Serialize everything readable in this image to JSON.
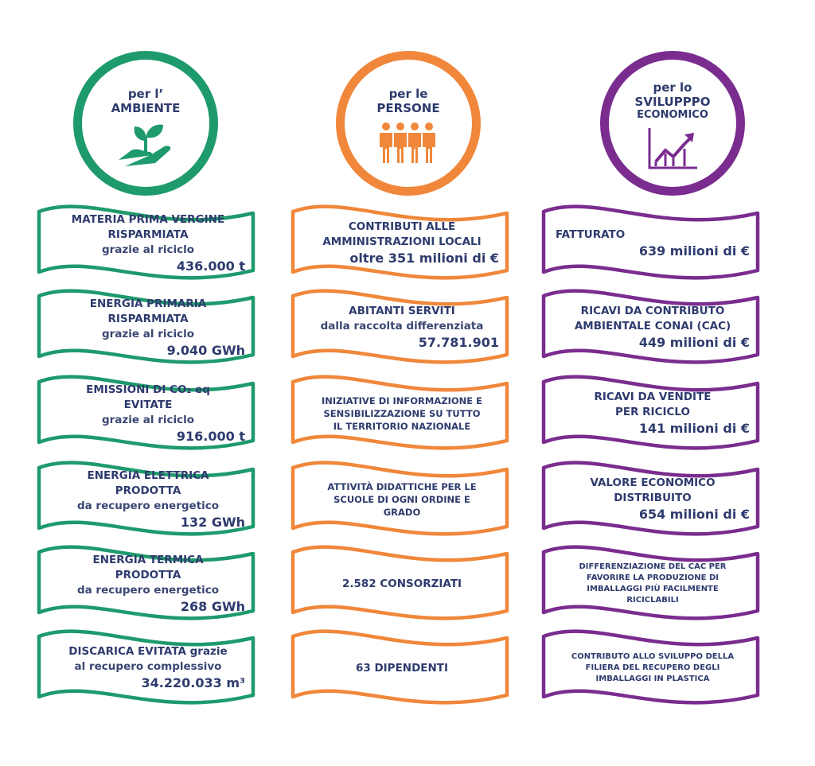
{
  "colors": {
    "ambiente": "#1e9a6c",
    "persone": "#f0873a",
    "sviluppo": "#7a2c8f",
    "text": "#2e3b6e"
  },
  "columns": [
    {
      "id": "ambiente",
      "icon": "plant-in-hand-icon",
      "heading": [
        "per l’",
        "AMBIENTE"
      ],
      "banners": [
        {
          "lines": [
            {
              "text": "MATERIA PRIMA VERGINE",
              "kind": "title"
            },
            {
              "text": "RISPARMIATA",
              "kind": "title"
            },
            {
              "text": "grazie al riciclo",
              "kind": "sub"
            },
            {
              "text": "436.000 t",
              "kind": "value"
            }
          ]
        },
        {
          "lines": [
            {
              "text": "ENERGIA PRIMARIA",
              "kind": "title"
            },
            {
              "text": "RISPARMIATA",
              "kind": "title"
            },
            {
              "text": "grazie al riciclo",
              "kind": "sub"
            },
            {
              "text": "9.040 GWh",
              "kind": "value"
            }
          ]
        },
        {
          "lines": [
            {
              "text": "EMISSIONI DI CO₂ eq",
              "kind": "title"
            },
            {
              "text": "EVITATE",
              "kind": "title"
            },
            {
              "text": "grazie al riciclo",
              "kind": "sub"
            },
            {
              "text": "916.000 t",
              "kind": "value"
            }
          ]
        },
        {
          "lines": [
            {
              "text": "ENERGIA ELETTRICA",
              "kind": "title"
            },
            {
              "text": "PRODOTTA",
              "kind": "title"
            },
            {
              "text": "da recupero energetico",
              "kind": "sub"
            },
            {
              "text": "132 GWh",
              "kind": "value"
            }
          ]
        },
        {
          "lines": [
            {
              "text": "ENERGIA TERMICA",
              "kind": "title"
            },
            {
              "text": "PRODOTTA",
              "kind": "title"
            },
            {
              "text": "da recupero energetico",
              "kind": "sub"
            },
            {
              "text": "268 GWh",
              "kind": "value"
            }
          ]
        },
        {
          "lines": [
            {
              "text": "DISCARICA EVITATA grazie",
              "kind": "title"
            },
            {
              "text": "al recupero complessivo",
              "kind": "sub"
            },
            {
              "text": "34.220.033 m³",
              "kind": "value"
            }
          ]
        }
      ]
    },
    {
      "id": "persone",
      "icon": "people-group-icon",
      "heading": [
        "per le",
        "PERSONE"
      ],
      "banners": [
        {
          "lines": [
            {
              "text": "CONTRIBUTI ALLE",
              "kind": "title"
            },
            {
              "text": "AMMINISTRAZIONI LOCALI",
              "kind": "title"
            },
            {
              "text": "oltre 351 milioni di €",
              "kind": "value"
            }
          ]
        },
        {
          "lines": [
            {
              "text": "ABITANTI SERVITI",
              "kind": "title"
            },
            {
              "text": "dalla raccolta differenziata",
              "kind": "sub"
            },
            {
              "text": "57.781.901",
              "kind": "value"
            }
          ]
        },
        {
          "lines": [
            {
              "text": "INIZIATIVE DI INFORMAZIONE E",
              "kind": "small"
            },
            {
              "text": "SENSIBILIZZAZIONE SU TUTTO",
              "kind": "small"
            },
            {
              "text": "IL TERRITORIO NAZIONALE",
              "kind": "small"
            }
          ]
        },
        {
          "lines": [
            {
              "text": "ATTIVITÀ DIDATTICHE PER LE",
              "kind": "small"
            },
            {
              "text": "SCUOLE DI OGNI ORDINE E",
              "kind": "small"
            },
            {
              "text": "GRADO",
              "kind": "small"
            }
          ]
        },
        {
          "lines": [
            {
              "text": "2.582 CONSORZIATI",
              "kind": "title"
            }
          ]
        },
        {
          "lines": [
            {
              "text": "63 DIPENDENTI",
              "kind": "title"
            }
          ]
        }
      ]
    },
    {
      "id": "sviluppo",
      "icon": "growth-chart-icon",
      "heading": [
        "per lo",
        "SVILUPPPO",
        "ECONOMICO"
      ],
      "banners": [
        {
          "lines": [
            {
              "text": "FATTURATO",
              "kind": "title left"
            },
            {
              "text": "639 milioni di €",
              "kind": "value"
            }
          ]
        },
        {
          "lines": [
            {
              "text": "RICAVI DA CONTRIBUTO",
              "kind": "title"
            },
            {
              "text": "AMBIENTALE CONAI (CAC)",
              "kind": "title"
            },
            {
              "text": "449 milioni di €",
              "kind": "value"
            }
          ]
        },
        {
          "lines": [
            {
              "text": "RICAVI DA VENDITE",
              "kind": "title"
            },
            {
              "text": "PER RICICLO",
              "kind": "title"
            },
            {
              "text": "141 milioni di €",
              "kind": "value"
            }
          ]
        },
        {
          "lines": [
            {
              "text": "VALORE ECONOMICO",
              "kind": "title"
            },
            {
              "text": "DISTRIBUITO",
              "kind": "title"
            },
            {
              "text": "654 milioni di €",
              "kind": "value"
            }
          ]
        },
        {
          "lines": [
            {
              "text": "DIFFERENZIAZIONE DEL CAC PER",
              "kind": "tiny"
            },
            {
              "text": "FAVORIRE LA PRODUZIONE DI",
              "kind": "tiny"
            },
            {
              "text": "IMBALLAGGI PIÙ FACILMENTE",
              "kind": "tiny"
            },
            {
              "text": "RICICLABILI",
              "kind": "tiny"
            }
          ]
        },
        {
          "lines": [
            {
              "text": "CONTRIBUTO ALLO SVILUPPO DELLA",
              "kind": "tiny"
            },
            {
              "text": "FILIERA DEL RECUPERO DEGLI",
              "kind": "tiny"
            },
            {
              "text": "IMBALLAGGI IN PLASTICA",
              "kind": "tiny"
            }
          ]
        }
      ]
    }
  ]
}
